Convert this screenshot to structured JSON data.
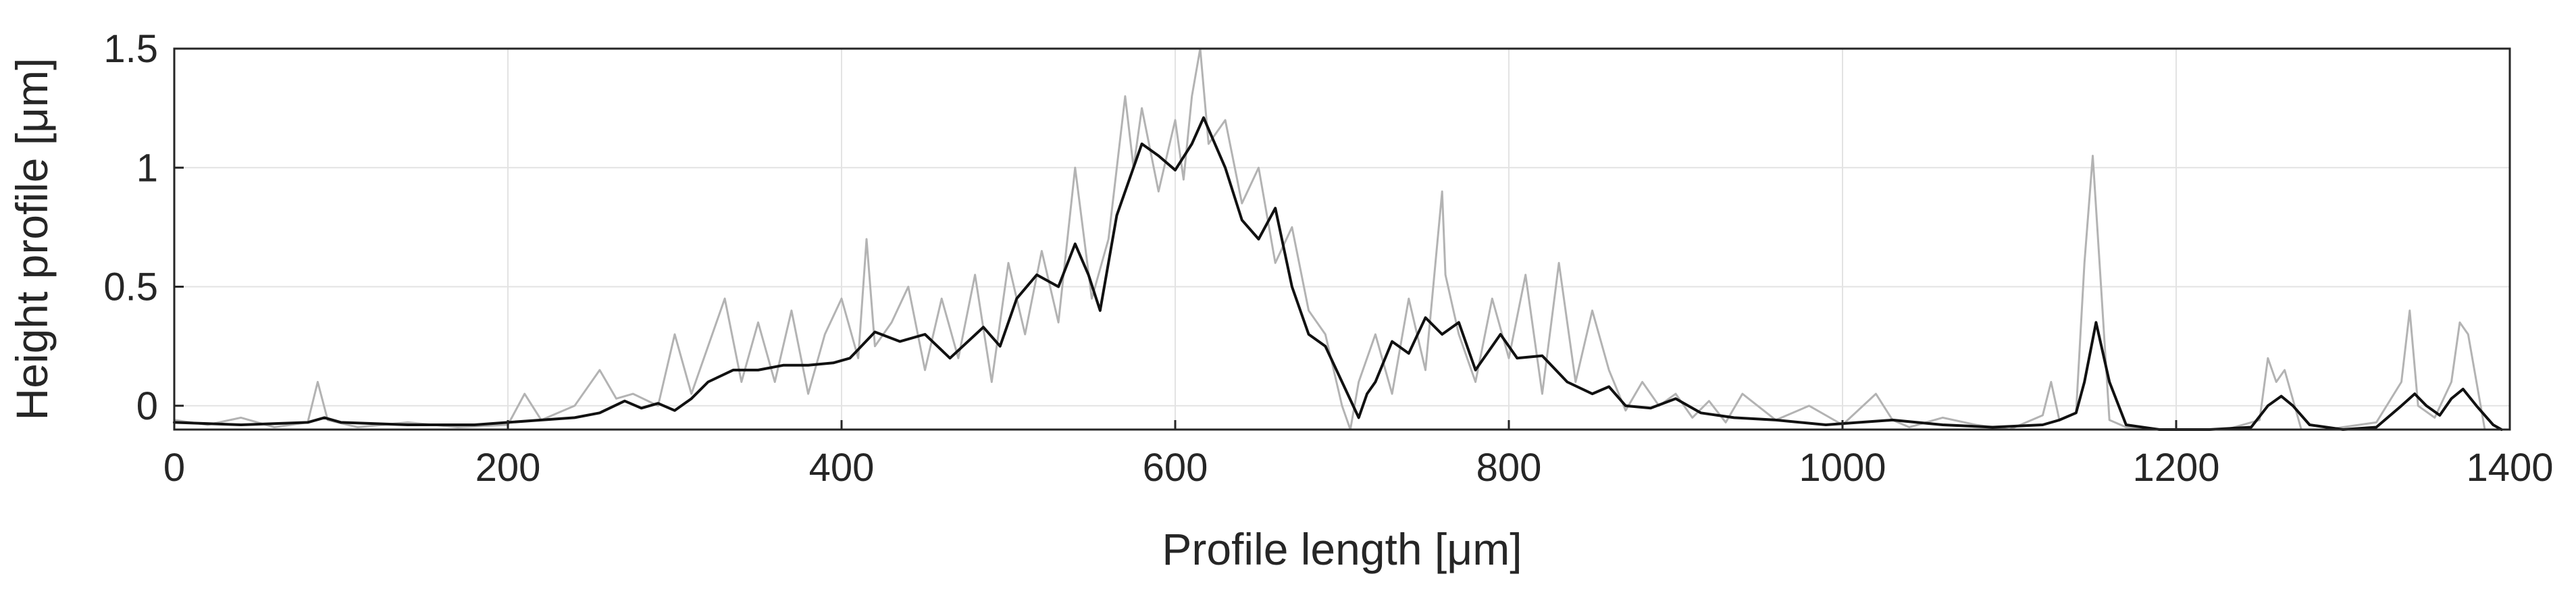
{
  "chart_data": {
    "type": "line",
    "title": "",
    "xlabel": "Profile length [μm]",
    "ylabel": "Height profile [μm]",
    "xlim": [
      0,
      1400
    ],
    "ylim": [
      -0.1,
      1.5
    ],
    "xticks": [
      0,
      200,
      400,
      600,
      800,
      1000,
      1200,
      1400
    ],
    "xtick_labels": [
      "0",
      "200",
      "400",
      "600",
      "800",
      "1000",
      "1200",
      "1400"
    ],
    "yticks": [
      0,
      0.5,
      1,
      1.5
    ],
    "ytick_labels": [
      "0",
      "0.5",
      "1",
      "1.5"
    ],
    "grid": true,
    "legend": "none",
    "colors": {
      "raw": "#b3b3b3",
      "smoothed": "#111111",
      "axes": "#262626",
      "grid": "#e3e3e3"
    },
    "series": [
      {
        "style": "raw",
        "x": [
          0,
          20,
          40,
          60,
          80,
          86,
          92,
          110,
          140,
          170,
          200,
          210,
          220,
          240,
          255,
          265,
          275,
          290,
          300,
          310,
          320,
          330,
          340,
          350,
          360,
          370,
          380,
          390,
          400,
          410,
          415,
          420,
          430,
          440,
          450,
          460,
          470,
          480,
          490,
          500,
          510,
          520,
          530,
          540,
          550,
          560,
          570,
          575,
          580,
          590,
          600,
          605,
          610,
          615,
          620,
          630,
          640,
          650,
          660,
          670,
          680,
          690,
          700,
          705,
          710,
          720,
          730,
          740,
          750,
          760,
          762,
          770,
          780,
          790,
          800,
          810,
          820,
          830,
          840,
          850,
          860,
          870,
          880,
          890,
          900,
          910,
          920,
          930,
          940,
          960,
          980,
          1000,
          1020,
          1030,
          1040,
          1060,
          1080,
          1100,
          1120,
          1125,
          1130,
          1140,
          1145,
          1150,
          1155,
          1160,
          1170,
          1190,
          1210,
          1230,
          1250,
          1255,
          1260,
          1265,
          1275,
          1290,
          1320,
          1335,
          1340,
          1345,
          1355,
          1365,
          1370,
          1375,
          1385,
          1395
        ],
        "y": [
          -0.06,
          -0.08,
          -0.05,
          -0.09,
          -0.07,
          0.1,
          -0.06,
          -0.09,
          -0.07,
          -0.09,
          -0.08,
          0.05,
          -0.06,
          0.0,
          0.15,
          0.03,
          0.05,
          0.0,
          0.3,
          0.05,
          0.25,
          0.45,
          0.1,
          0.35,
          0.1,
          0.4,
          0.05,
          0.3,
          0.45,
          0.2,
          0.7,
          0.25,
          0.35,
          0.5,
          0.15,
          0.45,
          0.2,
          0.55,
          0.1,
          0.6,
          0.3,
          0.65,
          0.35,
          1.0,
          0.45,
          0.7,
          1.3,
          1.0,
          1.25,
          0.9,
          1.2,
          0.95,
          1.3,
          1.5,
          1.1,
          1.2,
          0.85,
          1.0,
          0.6,
          0.75,
          0.4,
          0.3,
          0.0,
          -0.1,
          0.1,
          0.3,
          0.05,
          0.45,
          0.15,
          0.9,
          0.55,
          0.3,
          0.1,
          0.45,
          0.2,
          0.55,
          0.05,
          0.6,
          0.1,
          0.4,
          0.15,
          -0.02,
          0.1,
          0.0,
          0.05,
          -0.05,
          0.02,
          -0.07,
          0.05,
          -0.06,
          0.0,
          -0.08,
          0.05,
          -0.06,
          -0.09,
          -0.05,
          -0.08,
          -0.1,
          -0.04,
          0.1,
          -0.06,
          -0.03,
          0.6,
          1.05,
          0.5,
          -0.06,
          -0.09,
          -0.1,
          -0.1,
          -0.1,
          -0.06,
          0.2,
          0.1,
          0.15,
          -0.1,
          -0.1,
          -0.07,
          0.1,
          0.4,
          0.0,
          -0.05,
          0.1,
          0.35,
          0.3,
          -0.1,
          -0.1
        ]
      },
      {
        "style": "smoothed",
        "x": [
          0,
          40,
          80,
          90,
          100,
          140,
          180,
          200,
          220,
          240,
          255,
          270,
          280,
          290,
          300,
          310,
          320,
          335,
          350,
          365,
          380,
          395,
          405,
          420,
          435,
          450,
          465,
          485,
          495,
          505,
          517,
          530,
          540,
          548,
          555,
          565,
          580,
          590,
          600,
          610,
          617,
          630,
          640,
          650,
          660,
          670,
          680,
          690,
          700,
          710,
          715,
          720,
          730,
          740,
          750,
          760,
          770,
          780,
          795,
          805,
          820,
          835,
          850,
          860,
          870,
          885,
          900,
          915,
          935,
          960,
          990,
          1010,
          1030,
          1060,
          1090,
          1120,
          1130,
          1140,
          1145,
          1152,
          1160,
          1170,
          1190,
          1220,
          1245,
          1255,
          1263,
          1270,
          1280,
          1300,
          1320,
          1335,
          1343,
          1350,
          1358,
          1365,
          1372,
          1380,
          1390,
          1395
        ],
        "y": [
          -0.07,
          -0.08,
          -0.07,
          -0.05,
          -0.07,
          -0.08,
          -0.08,
          -0.07,
          -0.06,
          -0.05,
          -0.03,
          0.02,
          -0.01,
          0.01,
          -0.02,
          0.03,
          0.1,
          0.15,
          0.15,
          0.17,
          0.17,
          0.18,
          0.2,
          0.31,
          0.27,
          0.3,
          0.2,
          0.33,
          0.25,
          0.45,
          0.55,
          0.5,
          0.68,
          0.55,
          0.4,
          0.8,
          1.1,
          1.05,
          0.99,
          1.1,
          1.21,
          1.0,
          0.78,
          0.7,
          0.83,
          0.5,
          0.3,
          0.25,
          0.1,
          -0.05,
          0.05,
          0.1,
          0.27,
          0.22,
          0.37,
          0.3,
          0.35,
          0.15,
          0.3,
          0.2,
          0.21,
          0.1,
          0.05,
          0.08,
          0.0,
          -0.01,
          0.03,
          -0.03,
          -0.05,
          -0.06,
          -0.08,
          -0.07,
          -0.06,
          -0.08,
          -0.09,
          -0.08,
          -0.06,
          -0.03,
          0.1,
          0.35,
          0.1,
          -0.08,
          -0.1,
          -0.1,
          -0.09,
          0.0,
          0.04,
          0.0,
          -0.08,
          -0.1,
          -0.09,
          0.0,
          0.05,
          0.0,
          -0.04,
          0.03,
          0.07,
          0.0,
          -0.08,
          -0.1
        ]
      }
    ]
  }
}
